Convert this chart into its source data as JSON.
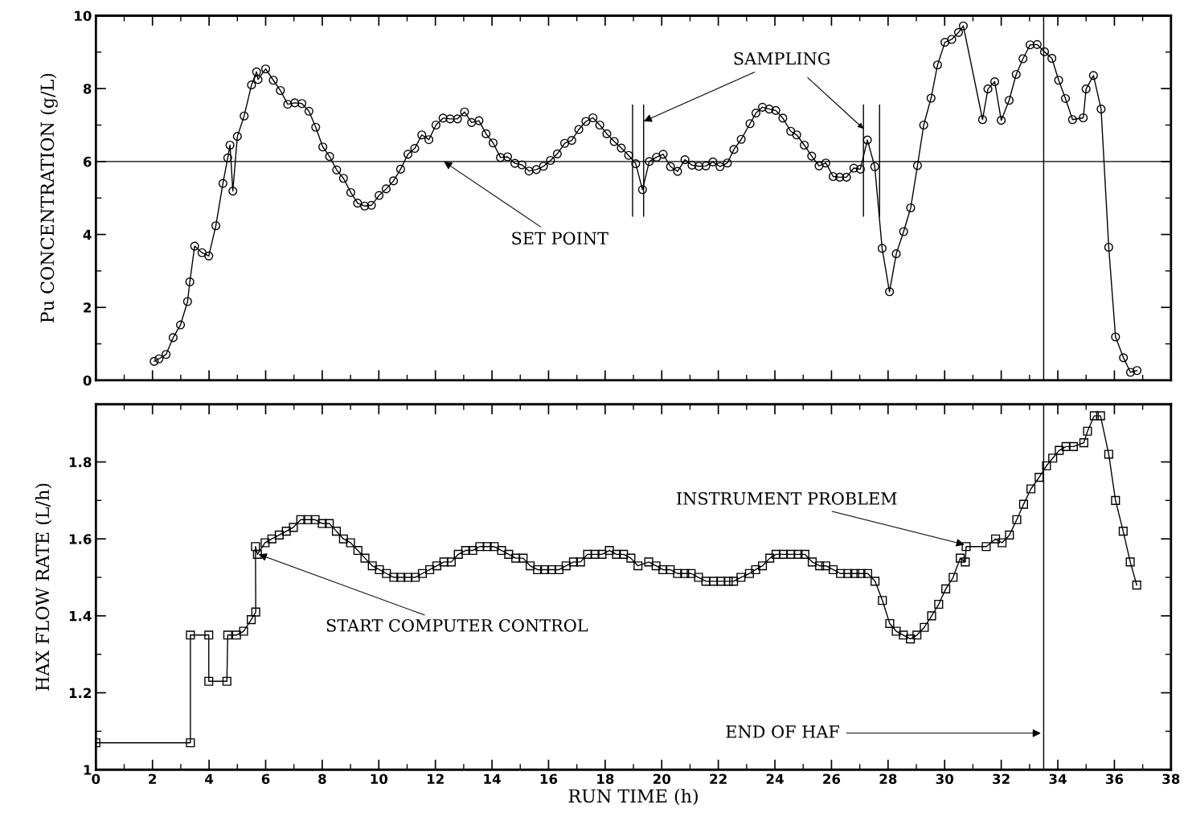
{
  "chart_data": [
    {
      "type": "line",
      "ylabel": "Pu CONCENTRATION (g/L)",
      "xlim": [
        0,
        38
      ],
      "xticks": [
        0,
        2,
        4,
        6,
        8,
        10,
        12,
        14,
        16,
        18,
        20,
        22,
        24,
        26,
        28,
        30,
        32,
        34,
        36,
        38
      ],
      "ylim": [
        0,
        10
      ],
      "yticks": [
        0,
        2,
        4,
        6,
        8,
        10
      ],
      "tick_labels": "y",
      "marker": "circle",
      "line_style": "solid",
      "grid": false,
      "series": [
        {
          "color": "#000000",
          "x": [
            2.06,
            2.23,
            2.48,
            2.73,
            2.99,
            3.24,
            3.32,
            3.49,
            3.75,
            3.99,
            4.24,
            4.49,
            4.66,
            4.74,
            4.84,
            5.0,
            5.24,
            5.5,
            5.68,
            5.73,
            6.0,
            6.27,
            6.52,
            6.78,
            7.03,
            7.28,
            7.53,
            7.77,
            8.02,
            8.26,
            8.51,
            8.75,
            9.01,
            9.25,
            9.5,
            9.74,
            10.01,
            10.26,
            10.52,
            10.77,
            11.03,
            11.27,
            11.52,
            11.77,
            12.02,
            12.27,
            12.52,
            12.78,
            13.03,
            13.28,
            13.54,
            13.79,
            14.04,
            14.3,
            14.55,
            14.81,
            15.06,
            15.31,
            15.57,
            15.82,
            16.07,
            16.31,
            16.57,
            16.82,
            17.07,
            17.32,
            17.57,
            17.81,
            18.06,
            18.32,
            18.57,
            18.83,
            19.08,
            19.32,
            19.56,
            19.82,
            20.05,
            20.31,
            20.56,
            20.82,
            21.07,
            21.31,
            21.56,
            21.81,
            22.06,
            22.32,
            22.55,
            22.81,
            23.12,
            23.33,
            23.56,
            23.8,
            24.03,
            24.28,
            24.56,
            24.77,
            25.04,
            25.3,
            25.56,
            25.8,
            26.06,
            26.29,
            26.53,
            26.79,
            27.02,
            27.27,
            27.53,
            27.79,
            28.05,
            28.29,
            28.55,
            28.8,
            29.04,
            29.26,
            29.52,
            29.75,
            30.01,
            30.25,
            30.49,
            30.66,
            31.34,
            31.53,
            31.77,
            32.0,
            32.28,
            32.53,
            32.77,
            33.02,
            33.27,
            33.53,
            33.79,
            34.03,
            34.27,
            34.52,
            34.9,
            35.0,
            35.26,
            35.53,
            35.8,
            36.04,
            36.32,
            36.57,
            36.8
          ],
          "values": [
            0.52,
            0.59,
            0.71,
            1.17,
            1.52,
            2.16,
            2.7,
            3.68,
            3.5,
            3.41,
            4.24,
            5.4,
            6.1,
            6.45,
            5.19,
            6.69,
            7.25,
            8.1,
            8.46,
            8.25,
            8.54,
            8.23,
            7.95,
            7.57,
            7.61,
            7.59,
            7.38,
            6.94,
            6.4,
            6.14,
            5.77,
            5.54,
            5.15,
            4.86,
            4.78,
            4.8,
            5.07,
            5.25,
            5.47,
            5.79,
            6.2,
            6.36,
            6.73,
            6.6,
            7.0,
            7.19,
            7.17,
            7.17,
            7.36,
            7.07,
            7.12,
            6.76,
            6.51,
            6.11,
            6.13,
            5.95,
            5.91,
            5.74,
            5.78,
            5.87,
            6.03,
            6.21,
            6.5,
            6.58,
            6.88,
            7.1,
            7.2,
            7.0,
            6.76,
            6.55,
            6.37,
            6.17,
            5.94,
            5.23,
            6.0,
            6.12,
            6.2,
            5.86,
            5.73,
            6.05,
            5.9,
            5.87,
            5.88,
            5.99,
            5.86,
            5.96,
            6.33,
            6.61,
            7.04,
            7.33,
            7.49,
            7.44,
            7.4,
            7.19,
            6.83,
            6.73,
            6.45,
            6.15,
            5.88,
            5.96,
            5.59,
            5.57,
            5.57,
            5.82,
            5.79,
            6.59,
            5.86,
            3.62,
            2.43,
            3.47,
            4.08,
            4.73,
            5.89,
            7.0,
            7.74,
            8.65,
            9.27,
            9.35,
            9.54,
            9.72,
            7.15,
            7.99,
            8.19,
            7.13,
            7.68,
            8.39,
            8.82,
            9.2,
            9.21,
            9.01,
            8.83,
            8.23,
            7.73,
            7.15,
            7.2,
            7.99,
            8.36,
            7.44,
            3.65,
            1.19,
            0.62,
            0.22,
            0.27
          ]
        }
      ],
      "ref_lines": [
        {
          "axis": "y",
          "value": 6,
          "label": "SET POINT"
        },
        {
          "axis": "x",
          "value": 18.97
        },
        {
          "axis": "x",
          "value": 19.36
        },
        {
          "axis": "x",
          "value": 27.13
        },
        {
          "axis": "x",
          "value": 27.7
        },
        {
          "axis": "x",
          "value": 33.5
        }
      ],
      "annotations": [
        {
          "text": "SAMPLING",
          "x": 19.36,
          "y": 7.1
        }
      ]
    },
    {
      "type": "line",
      "xlabel": "RUN TIME (h)",
      "ylabel": "HAX FLOW RATE (L/h)",
      "xlim": [
        0,
        38
      ],
      "xticks": [
        0,
        2,
        4,
        6,
        8,
        10,
        12,
        14,
        16,
        18,
        20,
        22,
        24,
        26,
        28,
        30,
        32,
        34,
        36,
        38
      ],
      "ylim": [
        1,
        1.95
      ],
      "yticks": [
        1,
        1.2,
        1.4,
        1.6,
        1.8
      ],
      "marker": "square",
      "line_style": "solid",
      "grid": false,
      "series": [
        {
          "color": "#000000",
          "x": [
            0,
            3.34,
            3.34,
            3.99,
            3.99,
            4.63,
            4.66,
            4.97,
            5.22,
            5.49,
            5.65,
            5.64,
            5.71,
            5.98,
            6.22,
            6.48,
            6.73,
            6.98,
            7.24,
            7.49,
            7.75,
            8.0,
            8.25,
            8.5,
            8.75,
            9.0,
            9.26,
            9.51,
            9.77,
            10.02,
            10.27,
            10.53,
            10.78,
            11.03,
            11.29,
            11.54,
            11.8,
            12.05,
            12.3,
            12.56,
            12.81,
            13.07,
            13.32,
            13.57,
            13.83,
            14.08,
            14.34,
            14.59,
            14.84,
            15.1,
            15.35,
            15.61,
            15.86,
            16.11,
            16.37,
            16.62,
            16.88,
            17.13,
            17.38,
            17.64,
            17.89,
            18.15,
            18.4,
            18.65,
            18.91,
            19.16,
            19.54,
            19.8,
            20.04,
            20.3,
            20.56,
            20.81,
            21.04,
            21.3,
            21.56,
            21.83,
            22.09,
            22.35,
            22.54,
            22.8,
            23.1,
            23.32,
            23.56,
            23.82,
            24.04,
            24.3,
            24.56,
            24.82,
            25.06,
            25.32,
            25.58,
            25.8,
            26.06,
            26.32,
            26.58,
            26.82,
            27.04,
            27.28,
            27.54,
            27.8,
            28.06,
            28.29,
            28.54,
            28.79,
            29.02,
            29.28,
            29.54,
            29.79,
            30.04,
            30.3,
            30.55,
            30.73,
            30.76,
            31.47,
            31.8,
            32.03,
            32.29,
            32.55,
            32.79,
            33.05,
            33.34,
            33.6,
            33.82,
            34.05,
            34.29,
            34.55,
            34.92,
            35.05,
            35.29,
            35.51,
            35.8,
            36.04,
            36.31,
            36.56,
            36.79
          ],
          "values": [
            1.07,
            1.07,
            1.35,
            1.35,
            1.23,
            1.23,
            1.35,
            1.35,
            1.36,
            1.39,
            1.41,
            1.58,
            1.56,
            1.59,
            1.6,
            1.61,
            1.62,
            1.63,
            1.65,
            1.65,
            1.65,
            1.64,
            1.64,
            1.62,
            1.6,
            1.59,
            1.57,
            1.55,
            1.53,
            1.52,
            1.51,
            1.5,
            1.5,
            1.5,
            1.5,
            1.51,
            1.52,
            1.53,
            1.54,
            1.54,
            1.56,
            1.57,
            1.57,
            1.58,
            1.58,
            1.58,
            1.57,
            1.56,
            1.55,
            1.55,
            1.53,
            1.52,
            1.52,
            1.52,
            1.52,
            1.53,
            1.54,
            1.54,
            1.56,
            1.56,
            1.56,
            1.57,
            1.56,
            1.56,
            1.55,
            1.53,
            1.54,
            1.53,
            1.52,
            1.52,
            1.51,
            1.51,
            1.51,
            1.5,
            1.49,
            1.49,
            1.49,
            1.49,
            1.49,
            1.5,
            1.51,
            1.52,
            1.53,
            1.55,
            1.56,
            1.56,
            1.56,
            1.56,
            1.56,
            1.54,
            1.53,
            1.53,
            1.52,
            1.51,
            1.51,
            1.51,
            1.51,
            1.51,
            1.49,
            1.44,
            1.38,
            1.36,
            1.35,
            1.34,
            1.35,
            1.37,
            1.4,
            1.43,
            1.47,
            1.5,
            1.55,
            1.54,
            1.58,
            1.58,
            1.6,
            1.59,
            1.61,
            1.65,
            1.69,
            1.73,
            1.76,
            1.79,
            1.81,
            1.83,
            1.84,
            1.84,
            1.85,
            1.88,
            1.92,
            1.92,
            1.82,
            1.7,
            1.62,
            1.54,
            1.48
          ]
        }
      ],
      "ref_lines": [
        {
          "axis": "x",
          "value": 33.5,
          "label": "END OF HAF"
        }
      ],
      "annotations": [
        {
          "text": "START COMPUTER CONTROL",
          "x": 5.75,
          "y": 1.56
        },
        {
          "text": "INSTRUMENT PROBLEM",
          "x": 30.7,
          "y": 1.585
        }
      ]
    }
  ]
}
